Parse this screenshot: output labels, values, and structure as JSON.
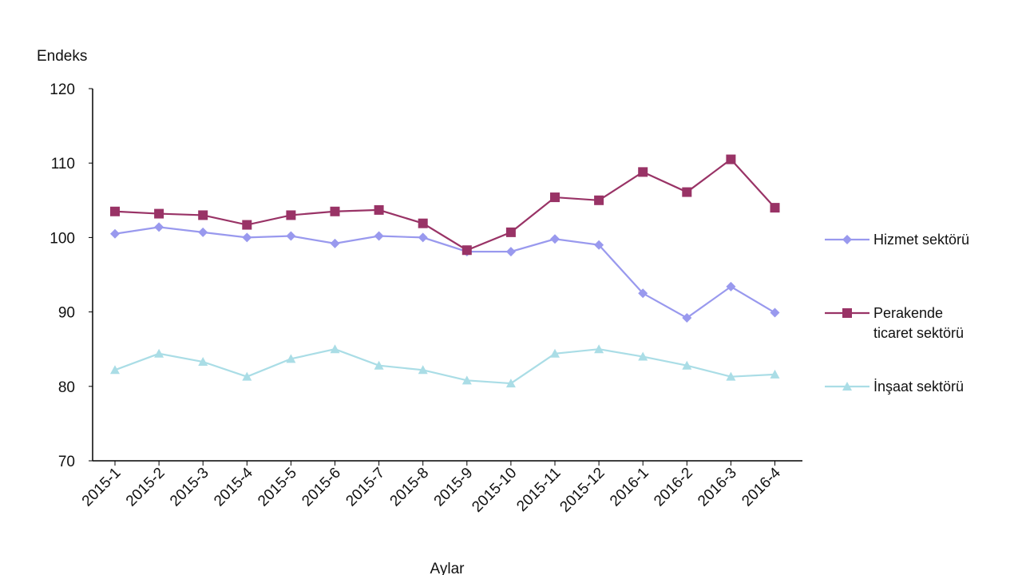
{
  "chart_data": {
    "type": "line",
    "title": "",
    "ylabel": "Endeks",
    "xlabel": "Aylar",
    "ylim": [
      70,
      120
    ],
    "yticks": [
      70,
      80,
      90,
      100,
      110,
      120
    ],
    "grid": false,
    "legend_position": "right",
    "categories": [
      "2015-1",
      "2015-2",
      "2015-3",
      "2015-4",
      "2015-5",
      "2015-6",
      "2015-7",
      "2015-8",
      "2015-9",
      "2015-10",
      "2015-11",
      "2015-12",
      "2016-1",
      "2016-2",
      "2016-3",
      "2016-4"
    ],
    "series": [
      {
        "name": "Hizmet sektörü",
        "legend_lines": [
          "Hizmet sektörü"
        ],
        "marker": "diamond",
        "color": "#9999ee",
        "values": [
          100.5,
          101.4,
          100.7,
          100.0,
          100.2,
          99.2,
          100.2,
          100.0,
          98.1,
          98.1,
          99.8,
          99.0,
          92.5,
          89.2,
          93.4,
          89.9
        ]
      },
      {
        "name": "Perakende ticaret sektörü",
        "legend_lines": [
          "Perakende",
          "ticaret sektörü"
        ],
        "marker": "square",
        "color": "#993366",
        "values": [
          103.5,
          103.2,
          103.0,
          101.7,
          103.0,
          103.5,
          103.7,
          101.9,
          98.3,
          100.7,
          105.4,
          105.0,
          108.8,
          106.1,
          110.5,
          104.0
        ]
      },
      {
        "name": "İnşaat sektörü",
        "legend_lines": [
          "İnşaat sektörü"
        ],
        "marker": "triangle",
        "color": "#aadde6",
        "values": [
          82.2,
          84.4,
          83.3,
          81.3,
          83.7,
          85.0,
          82.8,
          82.2,
          80.8,
          80.4,
          84.4,
          85.0,
          84.0,
          82.8,
          81.3,
          81.6
        ]
      }
    ]
  }
}
